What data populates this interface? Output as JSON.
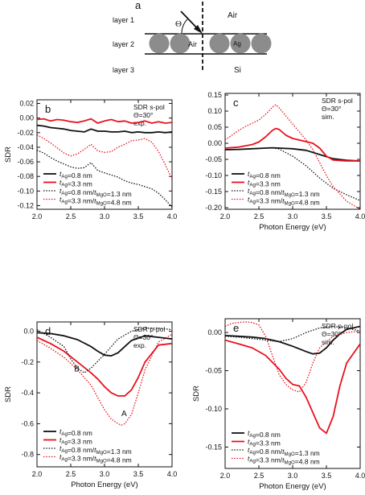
{
  "schematic": {
    "panel_label": "a",
    "layer_labels": [
      "layer 1",
      "layer 2",
      "layer 3"
    ],
    "air_top": "Air",
    "air_gap": "Air",
    "particle": "Ag",
    "substrate": "Si",
    "angle_symbol": "Θ"
  },
  "colors": {
    "black": "#111111",
    "red": "#e8121d",
    "particle": "#8c8c8c"
  },
  "chart_data": [
    {
      "type": "line",
      "panel": "b",
      "info": [
        "SDR s-pol",
        "Θ=30°",
        "exp."
      ],
      "xlabel": "",
      "ylabel": "SDR",
      "xlim": [
        2.0,
        4.0
      ],
      "ylim": [
        -0.125,
        0.025
      ],
      "xticks": [
        2.0,
        2.5,
        3.0,
        3.5,
        4.0
      ],
      "xtick_labels": [
        "2.0",
        "2.5",
        "3.0",
        "3.5",
        "4.0"
      ],
      "yticks": [
        0.02,
        0.0,
        -0.02,
        -0.04,
        -0.06,
        -0.08,
        -0.1,
        -0.12
      ],
      "ytick_labels": [
        "0.02",
        "0.00",
        "-0.02",
        "-0.04",
        "-0.06",
        "-0.08",
        "-0.10",
        "-0.12"
      ],
      "legend_position": "bottom-left",
      "series": [
        {
          "name": "tAg=0.8 nm",
          "color": "#111111",
          "style": "solid",
          "x": [
            2.0,
            2.1,
            2.2,
            2.3,
            2.4,
            2.5,
            2.6,
            2.7,
            2.8,
            2.9,
            3.0,
            3.1,
            3.2,
            3.3,
            3.4,
            3.5,
            3.6,
            3.7,
            3.8,
            3.9,
            4.0
          ],
          "y": [
            -0.01,
            -0.011,
            -0.013,
            -0.014,
            -0.015,
            -0.017,
            -0.018,
            -0.019,
            -0.015,
            -0.018,
            -0.018,
            -0.019,
            -0.019,
            -0.018,
            -0.02,
            -0.019,
            -0.02,
            -0.02,
            -0.019,
            -0.02,
            -0.019
          ]
        },
        {
          "name": "tAg=3.3 nm",
          "color": "#e8121d",
          "style": "solid",
          "x": [
            2.0,
            2.1,
            2.2,
            2.3,
            2.4,
            2.5,
            2.6,
            2.7,
            2.8,
            2.9,
            3.0,
            3.1,
            3.2,
            3.3,
            3.4,
            3.5,
            3.6,
            3.7,
            3.8,
            3.9,
            4.0
          ],
          "y": [
            -0.002,
            -0.001,
            -0.004,
            -0.002,
            -0.003,
            -0.005,
            -0.006,
            -0.004,
            -0.001,
            -0.007,
            -0.004,
            -0.002,
            -0.005,
            -0.004,
            -0.007,
            -0.006,
            -0.004,
            -0.007,
            -0.005,
            -0.007,
            -0.006
          ]
        },
        {
          "name": "tAg=0.8 nm/tMgO=1.3 nm",
          "color": "#111111",
          "style": "dotted",
          "x": [
            2.0,
            2.1,
            2.2,
            2.3,
            2.4,
            2.5,
            2.6,
            2.7,
            2.8,
            2.9,
            3.0,
            3.1,
            3.2,
            3.3,
            3.4,
            3.5,
            3.6,
            3.7,
            3.8,
            3.9,
            4.0
          ],
          "y": [
            -0.044,
            -0.048,
            -0.054,
            -0.059,
            -0.063,
            -0.067,
            -0.069,
            -0.068,
            -0.061,
            -0.072,
            -0.075,
            -0.078,
            -0.081,
            -0.086,
            -0.089,
            -0.091,
            -0.094,
            -0.097,
            -0.103,
            -0.112,
            -0.122
          ]
        },
        {
          "name": "tAg=3.3 nm/tMgO=4.8 nm",
          "color": "#e8121d",
          "style": "dotted",
          "x": [
            2.0,
            2.1,
            2.2,
            2.3,
            2.4,
            2.5,
            2.6,
            2.7,
            2.8,
            2.9,
            3.0,
            3.1,
            3.2,
            3.3,
            3.4,
            3.5,
            3.6,
            3.7,
            3.8,
            3.9,
            4.0
          ],
          "y": [
            -0.023,
            -0.028,
            -0.034,
            -0.041,
            -0.048,
            -0.052,
            -0.049,
            -0.043,
            -0.036,
            -0.045,
            -0.047,
            -0.046,
            -0.04,
            -0.036,
            -0.031,
            -0.03,
            -0.028,
            -0.033,
            -0.046,
            -0.064,
            -0.084
          ]
        }
      ]
    },
    {
      "type": "line",
      "panel": "c",
      "info": [
        "SDR s-pol",
        "Θ=30°",
        "sim."
      ],
      "xlabel": "Photon Energy (eV)",
      "ylabel": "",
      "xlim": [
        2.0,
        4.0
      ],
      "ylim": [
        -0.205,
        0.155
      ],
      "xticks": [
        2.0,
        2.5,
        3.0,
        3.5,
        4.0
      ],
      "xtick_labels": [
        "2.0",
        "2.5",
        "3.0",
        "3.5",
        "4.0"
      ],
      "yticks": [
        0.15,
        0.1,
        0.05,
        0.0,
        -0.05,
        -0.1,
        -0.15,
        -0.2
      ],
      "ytick_labels": [
        "0.15",
        "0.10",
        "0.05",
        "0.00",
        "-0.05",
        "-0.10",
        "-0.15",
        "-0.20"
      ],
      "legend_position": "bottom-left",
      "series": [
        {
          "name": "tAg=0.8 nm",
          "color": "#111111",
          "style": "solid",
          "x": [
            2.0,
            2.2,
            2.4,
            2.6,
            2.7,
            2.8,
            3.0,
            3.2,
            3.4,
            3.6,
            3.8,
            4.0
          ],
          "y": [
            -0.02,
            -0.019,
            -0.017,
            -0.015,
            -0.014,
            -0.015,
            -0.017,
            -0.022,
            -0.035,
            -0.048,
            -0.053,
            -0.055
          ]
        },
        {
          "name": "tAg=3.3 nm",
          "color": "#e8121d",
          "style": "solid",
          "x": [
            2.0,
            2.2,
            2.4,
            2.5,
            2.6,
            2.7,
            2.75,
            2.8,
            2.9,
            3.0,
            3.1,
            3.2,
            3.3,
            3.4,
            3.5,
            3.6,
            3.8,
            4.0
          ],
          "y": [
            -0.015,
            -0.012,
            -0.004,
            0.004,
            0.02,
            0.04,
            0.046,
            0.043,
            0.025,
            0.015,
            0.01,
            0.005,
            0.0,
            -0.015,
            -0.04,
            -0.052,
            -0.055,
            -0.055
          ]
        },
        {
          "name": "tAg=0.8 nm/tMgO=1.3 nm",
          "color": "#111111",
          "style": "dotted",
          "x": [
            2.0,
            2.2,
            2.4,
            2.6,
            2.7,
            2.8,
            3.0,
            3.2,
            3.4,
            3.6,
            3.8,
            4.0
          ],
          "y": [
            -0.02,
            -0.019,
            -0.017,
            -0.015,
            -0.014,
            -0.018,
            -0.04,
            -0.07,
            -0.108,
            -0.14,
            -0.16,
            -0.178
          ]
        },
        {
          "name": "tAg=3.3 nm/tMgO=4.8 nm",
          "color": "#e8121d",
          "style": "dotted",
          "x": [
            2.0,
            2.1,
            2.2,
            2.3,
            2.4,
            2.5,
            2.6,
            2.7,
            2.75,
            2.8,
            2.9,
            3.0,
            3.1,
            3.2,
            3.3,
            3.4,
            3.5,
            3.6,
            3.8,
            4.0
          ],
          "y": [
            0.01,
            0.025,
            0.04,
            0.052,
            0.062,
            0.072,
            0.09,
            0.112,
            0.12,
            0.11,
            0.085,
            0.06,
            0.035,
            0.01,
            -0.02,
            -0.06,
            -0.1,
            -0.135,
            -0.18,
            -0.205
          ]
        }
      ]
    },
    {
      "type": "line",
      "panel": "d",
      "info": [
        "SDR p-pol",
        "Θ=30°",
        "exp."
      ],
      "xlabel": "Photon Energy (eV)",
      "ylabel": "SDR",
      "xlim": [
        2.0,
        4.0
      ],
      "ylim": [
        -0.88,
        0.06
      ],
      "xticks": [
        2.0,
        2.5,
        3.0,
        3.5,
        4.0
      ],
      "xtick_labels": [
        "2.0",
        "2.5",
        "3.0",
        "3.5",
        "4.0"
      ],
      "yticks": [
        0.0,
        -0.2,
        -0.4,
        -0.6,
        -0.8
      ],
      "ytick_labels": [
        "0.0",
        "-0.2",
        "-0.4",
        "-0.6",
        "-0.8"
      ],
      "legend_position": "bottom-left",
      "annotations": [
        {
          "text": "A",
          "x": 3.25,
          "y": -0.55
        },
        {
          "text": "B",
          "x": 2.55,
          "y": -0.26
        }
      ],
      "series": [
        {
          "name": "tAg=0.8 nm",
          "color": "#111111",
          "style": "solid",
          "x": [
            2.0,
            2.2,
            2.4,
            2.6,
            2.8,
            2.9,
            3.0,
            3.1,
            3.2,
            3.3,
            3.4,
            3.6,
            3.8,
            4.0
          ],
          "y": [
            -0.01,
            -0.015,
            -0.03,
            -0.055,
            -0.1,
            -0.13,
            -0.155,
            -0.16,
            -0.14,
            -0.1,
            -0.06,
            -0.03,
            -0.04,
            -0.05
          ]
        },
        {
          "name": "tAg=3.3 nm",
          "color": "#e8121d",
          "style": "solid",
          "x": [
            2.0,
            2.2,
            2.4,
            2.6,
            2.8,
            2.9,
            3.0,
            3.1,
            3.2,
            3.3,
            3.4,
            3.5,
            3.6,
            3.8,
            4.0
          ],
          "y": [
            -0.04,
            -0.08,
            -0.13,
            -0.2,
            -0.27,
            -0.31,
            -0.36,
            -0.4,
            -0.42,
            -0.42,
            -0.38,
            -0.3,
            -0.2,
            -0.09,
            -0.08
          ]
        },
        {
          "name": "tAg=0.8 nm/tMgO=1.3 nm",
          "color": "#111111",
          "style": "dotted",
          "x": [
            2.0,
            2.2,
            2.4,
            2.5,
            2.6,
            2.7,
            2.8,
            3.0,
            3.2,
            3.4,
            3.6,
            3.8,
            4.0
          ],
          "y": [
            0.01,
            -0.04,
            -0.1,
            -0.18,
            -0.24,
            -0.27,
            -0.24,
            -0.15,
            -0.05,
            0.0,
            0.02,
            0.02,
            0.01
          ]
        },
        {
          "name": "tAg=3.3 nm/tMgO=4.8 nm",
          "color": "#e8121d",
          "style": "dotted",
          "x": [
            2.0,
            2.2,
            2.4,
            2.6,
            2.8,
            2.9,
            3.0,
            3.1,
            3.2,
            3.25,
            3.3,
            3.4,
            3.5,
            3.6,
            3.8,
            4.0
          ],
          "y": [
            -0.06,
            -0.11,
            -0.17,
            -0.25,
            -0.35,
            -0.43,
            -0.51,
            -0.57,
            -0.6,
            -0.61,
            -0.6,
            -0.54,
            -0.4,
            -0.25,
            -0.07,
            -0.02
          ]
        }
      ]
    },
    {
      "type": "line",
      "panel": "e",
      "info": [
        "SDR p-pol",
        "Θ=30°",
        "sim."
      ],
      "xlabel": "Photon Energy (eV)",
      "ylabel": "SDR",
      "xlim": [
        2.0,
        4.0
      ],
      "ylim": [
        -0.178,
        0.018
      ],
      "xticks": [
        2.0,
        2.5,
        3.0,
        3.5,
        4.0
      ],
      "xtick_labels": [
        "2.0",
        "2.5",
        "3.0",
        "3.5",
        "4.0"
      ],
      "yticks": [
        0.0,
        -0.05,
        -0.1,
        -0.15
      ],
      "ytick_labels": [
        "0.00",
        "-0.05",
        "-0.10",
        "-0.15"
      ],
      "legend_position": "bottom-left",
      "series": [
        {
          "name": "tAg=0.8 nm",
          "color": "#111111",
          "style": "solid",
          "x": [
            2.0,
            2.2,
            2.4,
            2.6,
            2.8,
            3.0,
            3.2,
            3.3,
            3.4,
            3.5,
            3.6,
            3.7,
            3.8,
            4.0
          ],
          "y": [
            -0.004,
            -0.005,
            -0.006,
            -0.008,
            -0.012,
            -0.018,
            -0.025,
            -0.028,
            -0.027,
            -0.02,
            -0.01,
            -0.002,
            0.004,
            0.008
          ]
        },
        {
          "name": "tAg=3.3 nm",
          "color": "#e8121d",
          "style": "solid",
          "x": [
            2.0,
            2.2,
            2.4,
            2.6,
            2.8,
            2.9,
            3.0,
            3.1,
            3.2,
            3.3,
            3.4,
            3.5,
            3.6,
            3.7,
            3.8,
            4.0
          ],
          "y": [
            -0.01,
            -0.015,
            -0.02,
            -0.03,
            -0.048,
            -0.06,
            -0.068,
            -0.07,
            -0.085,
            -0.105,
            -0.125,
            -0.132,
            -0.11,
            -0.07,
            -0.04,
            -0.015
          ]
        },
        {
          "name": "tAg=0.8 nm/tMgO=1.3 nm",
          "color": "#111111",
          "style": "dotted",
          "x": [
            2.0,
            2.2,
            2.4,
            2.6,
            2.8,
            3.0,
            3.2,
            3.4,
            3.6,
            3.8,
            4.0
          ],
          "y": [
            -0.005,
            -0.006,
            -0.008,
            -0.01,
            -0.012,
            -0.008,
            0.0,
            0.006,
            0.008,
            0.006,
            0.002
          ]
        },
        {
          "name": "tAg=3.3 nm/tMgO=4.8 nm",
          "color": "#e8121d",
          "style": "dotted",
          "x": [
            2.0,
            2.1,
            2.3,
            2.4,
            2.5,
            2.6,
            2.7,
            2.8,
            2.9,
            3.0,
            3.1,
            3.2,
            3.3,
            3.4,
            3.6,
            3.8,
            4.0
          ],
          "y": [
            0.008,
            0.012,
            0.014,
            0.013,
            0.01,
            -0.005,
            -0.03,
            -0.055,
            -0.068,
            -0.075,
            -0.078,
            -0.065,
            -0.04,
            -0.02,
            -0.005,
            0.0,
            0.002
          ]
        }
      ]
    }
  ]
}
